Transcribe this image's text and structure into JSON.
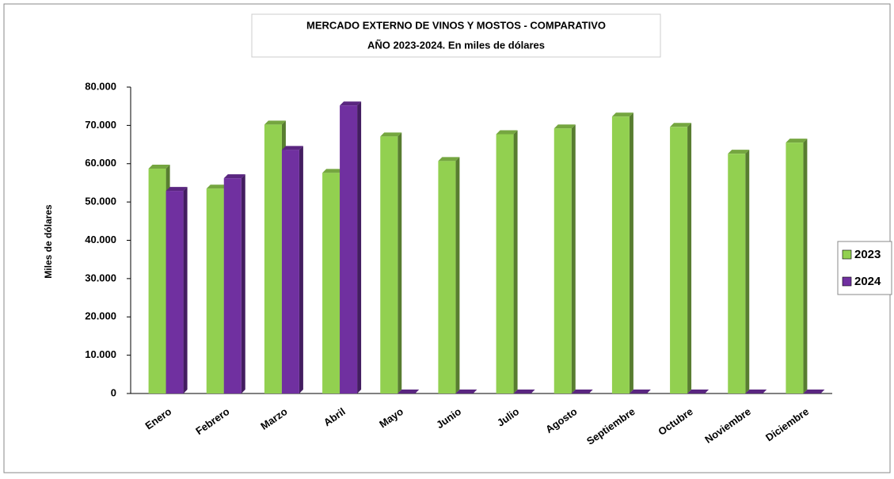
{
  "chart_data": {
    "type": "bar",
    "title": [
      "MERCADO EXTERNO DE VINOS Y MOSTOS - COMPARATIVO",
      "AÑO 2023-2024. En miles de dólares"
    ],
    "y_label": "Miles de dólares",
    "categories": [
      "Enero",
      "Febrero",
      "Marzo",
      "Abril",
      "Mayo",
      "Junio",
      "Julio",
      "Agosto",
      "Septiembre",
      "Octubre",
      "Noviembre",
      "Diciembre"
    ],
    "series": [
      {
        "name": "2023",
        "color": "#92d050",
        "values": [
          58700,
          53500,
          70200,
          57600,
          67100,
          60700,
          67700,
          69200,
          72300,
          69600,
          62600,
          65500
        ]
      },
      {
        "name": "2024",
        "color": "#7030a0",
        "values": [
          52900,
          56200,
          63600,
          75200,
          0,
          0,
          0,
          0,
          0,
          0,
          0,
          0
        ]
      }
    ],
    "ylim": [
      0,
      80000
    ],
    "yticks": [
      0,
      {
        "value": 10000,
        "label": "10.000"
      },
      {
        "value": 20000,
        "label": "20.000"
      },
      {
        "value": 30000,
        "label": "30.000"
      },
      {
        "value": 40000,
        "label": "40.000"
      },
      {
        "value": 50000,
        "label": "50.000"
      },
      {
        "value": 60000,
        "label": "60.000"
      },
      {
        "value": 70000,
        "label": "70.000"
      },
      {
        "value": 80000,
        "label": "80.000"
      }
    ],
    "legend": "right"
  }
}
